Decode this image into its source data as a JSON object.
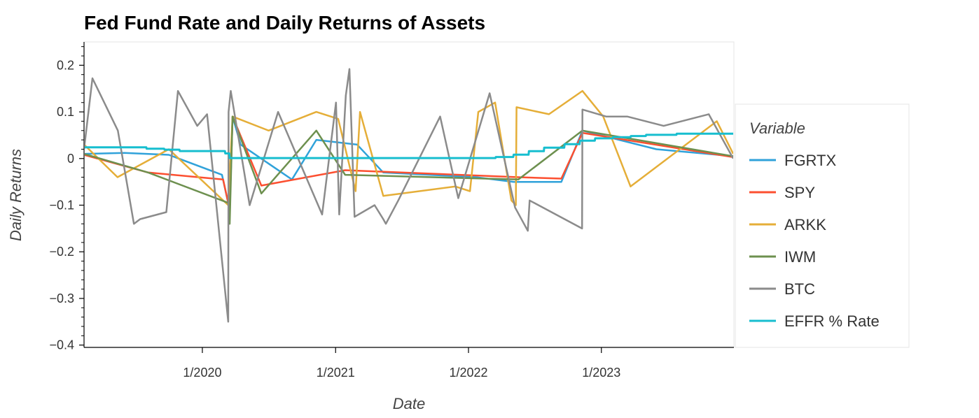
{
  "chart_data": {
    "type": "line",
    "title": "Fed Fund Rate and Daily Returns of Assets",
    "xlabel": "Date",
    "ylabel": "Daily Returns",
    "x_range": [
      "2019-02-10",
      "2023-12-31"
    ],
    "ylim": [
      -0.405,
      0.25
    ],
    "x_ticks": [
      {
        "date": "2020-01-01",
        "label": "1/2020"
      },
      {
        "date": "2021-01-01",
        "label": "1/2021"
      },
      {
        "date": "2022-01-01",
        "label": "1/2022"
      },
      {
        "date": "2023-01-01",
        "label": "1/2023"
      }
    ],
    "y_ticks": [
      {
        "value": 0.2,
        "label": "0.2"
      },
      {
        "value": 0.1,
        "label": "0.1"
      },
      {
        "value": 0,
        "label": "0"
      },
      {
        "value": -0.1,
        "label": "−0.1"
      },
      {
        "value": -0.2,
        "label": "−0.2"
      },
      {
        "value": -0.3,
        "label": "−0.3"
      },
      {
        "value": -0.4,
        "label": "−0.4"
      }
    ],
    "y_minor_step": 0.02,
    "grid": false,
    "legend_position": "right",
    "legend_title": "Variable",
    "series": [
      {
        "name": "FGRTX",
        "color": "#30a2da",
        "data": [
          [
            "2019-02-10",
            0.01
          ],
          [
            "2019-06-01",
            0.012
          ],
          [
            "2019-10-01",
            0.008
          ],
          [
            "2020-02-24",
            -0.035
          ],
          [
            "2020-03-16",
            -0.11
          ],
          [
            "2020-03-24",
            0.09
          ],
          [
            "2020-04-15",
            0.03
          ],
          [
            "2020-09-03",
            -0.045
          ],
          [
            "2020-11-09",
            0.04
          ],
          [
            "2021-03-01",
            0.03
          ],
          [
            "2021-05-12",
            -0.03
          ],
          [
            "2022-01-21",
            -0.04
          ],
          [
            "2022-05-05",
            -0.05
          ],
          [
            "2022-09-13",
            -0.05
          ],
          [
            "2022-11-10",
            0.06
          ],
          [
            "2023-06-01",
            0.02
          ],
          [
            "2023-12-29",
            0.005
          ]
        ]
      },
      {
        "name": "SPY",
        "color": "#fc4f30",
        "data": [
          [
            "2019-02-10",
            0.008
          ],
          [
            "2019-08-05",
            -0.03
          ],
          [
            "2020-02-27",
            -0.045
          ],
          [
            "2020-03-12",
            -0.095
          ],
          [
            "2020-03-16",
            -0.11
          ],
          [
            "2020-03-24",
            0.09
          ],
          [
            "2020-06-11",
            -0.058
          ],
          [
            "2021-01-27",
            -0.025
          ],
          [
            "2022-05-18",
            -0.04
          ],
          [
            "2022-09-13",
            -0.043
          ],
          [
            "2022-11-10",
            0.055
          ],
          [
            "2023-12-29",
            0.003
          ]
        ]
      },
      {
        "name": "ARKK",
        "color": "#e5ae38",
        "data": [
          [
            "2019-02-10",
            0.03
          ],
          [
            "2019-05-13",
            -0.04
          ],
          [
            "2019-10-01",
            0.02
          ],
          [
            "2020-03-12",
            -0.1
          ],
          [
            "2020-03-24",
            0.09
          ],
          [
            "2020-07-01",
            0.06
          ],
          [
            "2020-11-09",
            0.1
          ],
          [
            "2021-01-08",
            0.085
          ],
          [
            "2021-02-25",
            -0.07
          ],
          [
            "2021-03-09",
            0.1
          ],
          [
            "2021-05-12",
            -0.08
          ],
          [
            "2021-11-26",
            -0.06
          ],
          [
            "2022-01-05",
            -0.07
          ],
          [
            "2022-01-28",
            0.1
          ],
          [
            "2022-03-15",
            0.12
          ],
          [
            "2022-04-29",
            -0.09
          ],
          [
            "2022-05-11",
            -0.1
          ],
          [
            "2022-05-13",
            0.11
          ],
          [
            "2022-08-10",
            0.095
          ],
          [
            "2022-11-10",
            0.145
          ],
          [
            "2023-01-06",
            0.09
          ],
          [
            "2023-03-22",
            -0.06
          ],
          [
            "2023-11-14",
            0.08
          ],
          [
            "2023-12-29",
            0.01
          ]
        ]
      },
      {
        "name": "IWM",
        "color": "#6d904f",
        "data": [
          [
            "2019-02-10",
            0.01
          ],
          [
            "2019-08-05",
            -0.03
          ],
          [
            "2020-03-12",
            -0.095
          ],
          [
            "2020-03-16",
            -0.14
          ],
          [
            "2020-03-24",
            0.09
          ],
          [
            "2020-06-11",
            -0.075
          ],
          [
            "2020-11-09",
            0.06
          ],
          [
            "2021-01-27",
            -0.035
          ],
          [
            "2022-05-18",
            -0.045
          ],
          [
            "2022-11-10",
            0.06
          ],
          [
            "2023-12-29",
            0.005
          ]
        ]
      },
      {
        "name": "BTC",
        "color": "#8b8b8b",
        "data": [
          [
            "2019-02-10",
            0.02
          ],
          [
            "2019-03-05",
            0.172
          ],
          [
            "2019-05-14",
            0.06
          ],
          [
            "2019-06-27",
            -0.14
          ],
          [
            "2019-07-14",
            -0.13
          ],
          [
            "2019-09-24",
            -0.115
          ],
          [
            "2019-10-26",
            0.145
          ],
          [
            "2019-12-18",
            0.07
          ],
          [
            "2020-01-14",
            0.095
          ],
          [
            "2020-03-12",
            -0.35
          ],
          [
            "2020-03-13",
            0.1
          ],
          [
            "2020-03-19",
            0.145
          ],
          [
            "2020-05-10",
            -0.1
          ],
          [
            "2020-07-27",
            0.1
          ],
          [
            "2020-11-25",
            -0.12
          ],
          [
            "2021-01-02",
            0.12
          ],
          [
            "2021-01-11",
            -0.12
          ],
          [
            "2021-01-29",
            0.135
          ],
          [
            "2021-02-08",
            0.192
          ],
          [
            "2021-02-22",
            -0.125
          ],
          [
            "2021-04-18",
            -0.1
          ],
          [
            "2021-05-12",
            -0.13
          ],
          [
            "2021-05-19",
            -0.14
          ],
          [
            "2021-06-22",
            -0.09
          ],
          [
            "2021-10-15",
            0.09
          ],
          [
            "2021-12-04",
            -0.085
          ],
          [
            "2022-02-28",
            0.14
          ],
          [
            "2022-05-09",
            -0.105
          ],
          [
            "2022-06-13",
            -0.155
          ],
          [
            "2022-06-18",
            -0.09
          ],
          [
            "2022-11-09",
            -0.15
          ],
          [
            "2022-11-10",
            0.105
          ],
          [
            "2023-01-14",
            0.09
          ],
          [
            "2023-03-13",
            0.09
          ],
          [
            "2023-06-21",
            0.07
          ],
          [
            "2023-10-23",
            0.095
          ],
          [
            "2023-12-29",
            0.0
          ]
        ]
      },
      {
        "name": "EFFR % Rate",
        "color": "#17becf",
        "data": [
          [
            "2019-02-10",
            0.024
          ],
          [
            "2019-07-31",
            0.024
          ],
          [
            "2019-08-01",
            0.021
          ],
          [
            "2019-09-18",
            0.021
          ],
          [
            "2019-09-19",
            0.019
          ],
          [
            "2019-10-30",
            0.019
          ],
          [
            "2019-10-31",
            0.016
          ],
          [
            "2020-03-03",
            0.016
          ],
          [
            "2020-03-04",
            0.011
          ],
          [
            "2020-03-15",
            0.011
          ],
          [
            "2020-03-16",
            0.001
          ],
          [
            "2022-03-16",
            0.001
          ],
          [
            "2022-03-17",
            0.0033
          ],
          [
            "2022-05-04",
            0.0033
          ],
          [
            "2022-05-05",
            0.0083
          ],
          [
            "2022-06-15",
            0.0083
          ],
          [
            "2022-06-16",
            0.0158
          ],
          [
            "2022-07-27",
            0.0158
          ],
          [
            "2022-07-28",
            0.0233
          ],
          [
            "2022-09-21",
            0.0233
          ],
          [
            "2022-09-22",
            0.0308
          ],
          [
            "2022-11-02",
            0.0308
          ],
          [
            "2022-11-03",
            0.0383
          ],
          [
            "2022-12-14",
            0.0383
          ],
          [
            "2022-12-15",
            0.0433
          ],
          [
            "2023-02-01",
            0.0433
          ],
          [
            "2023-02-02",
            0.0458
          ],
          [
            "2023-03-22",
            0.0458
          ],
          [
            "2023-03-23",
            0.0483
          ],
          [
            "2023-05-03",
            0.0483
          ],
          [
            "2023-05-04",
            0.0508
          ],
          [
            "2023-07-26",
            0.0508
          ],
          [
            "2023-07-27",
            0.0533
          ],
          [
            "2023-12-31",
            0.0533
          ]
        ]
      }
    ]
  }
}
